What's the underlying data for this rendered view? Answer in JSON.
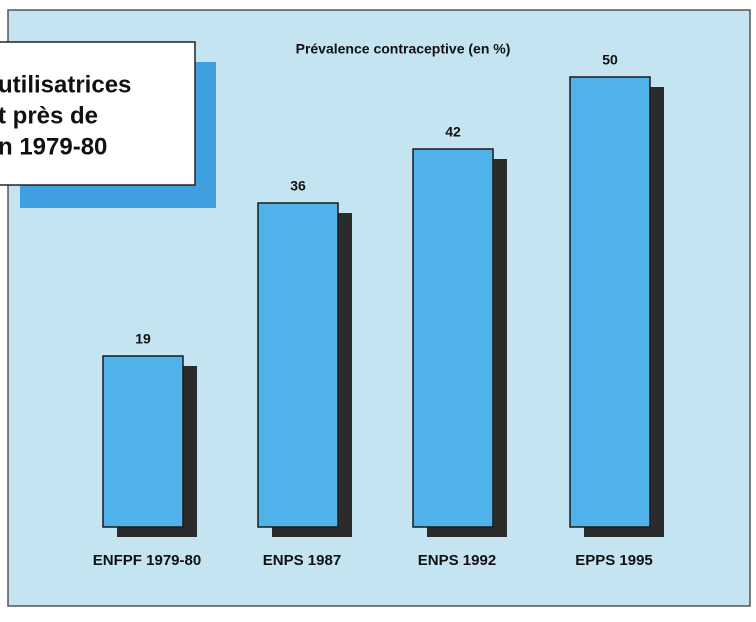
{
  "callout": {
    "lines": [
      "utilisatrices",
      "t près de",
      "n 1979-80"
    ]
  },
  "chart_data": {
    "type": "bar",
    "title": "Prévalence contraceptive (en %)",
    "categories": [
      "ENFPF 1979-80",
      "ENPS 1987",
      "ENPS 1992",
      "EPPS 1995"
    ],
    "values": [
      19,
      36,
      42,
      50
    ],
    "color": "#4fb3ea"
  }
}
